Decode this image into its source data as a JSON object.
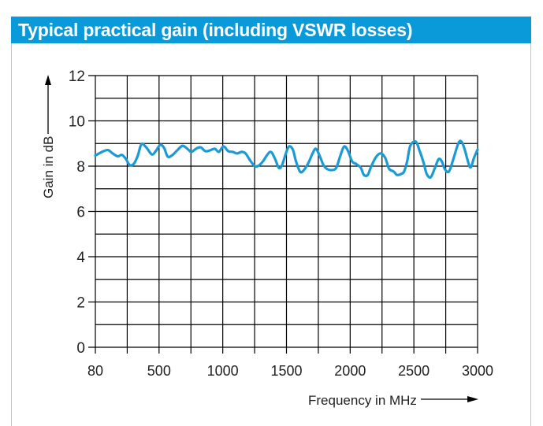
{
  "header": {
    "title": "Typical practical gain (including VSWR losses)"
  },
  "colors": {
    "header_bg": "#0a9ad9",
    "curve": "#1b9ad6",
    "grid": "#000000",
    "text": "#222222"
  },
  "chart_data": {
    "type": "line",
    "title": "Typical practical gain (including VSWR losses)",
    "xlabel": "Frequency in MHz",
    "ylabel": "Gain in dB",
    "x_ticks": [
      80,
      500,
      1000,
      1500,
      2000,
      2500,
      3000
    ],
    "x_tick_labels": [
      "80",
      "500",
      "1000",
      "1500",
      "2000",
      "2500",
      "3000"
    ],
    "x_grid": [
      80,
      290,
      500,
      750,
      1000,
      1250,
      1500,
      1750,
      2000,
      2250,
      2500,
      2750,
      3000
    ],
    "x_scale_note": "piecewise linear: 80-500 spans two grid columns, then 250 MHz per column",
    "y_ticks": [
      0,
      2,
      4,
      6,
      8,
      10,
      12
    ],
    "y_tick_labels": [
      "0",
      "2",
      "4",
      "6",
      "8",
      "10",
      "12"
    ],
    "y_grid": [
      0,
      1,
      2,
      3,
      4,
      5,
      6,
      7,
      8,
      9,
      10,
      11,
      12
    ],
    "xlim": [
      80,
      3000
    ],
    "ylim": [
      0,
      12
    ],
    "grid": true,
    "legend": null,
    "series": [
      {
        "name": "Gain",
        "x": [
          80,
          127,
          163,
          192,
          228,
          254,
          280,
          306,
          332,
          358,
          384,
          415,
          452,
          478,
          509,
          540,
          568,
          605,
          648,
          685,
          722,
          753,
          790,
          827,
          864,
          901,
          938,
          969,
          1006,
          1043,
          1080,
          1111,
          1148,
          1179,
          1216,
          1253,
          1284,
          1315,
          1371,
          1408,
          1439,
          1464,
          1495,
          1520,
          1550,
          1575,
          1606,
          1631,
          1668,
          1705,
          1730,
          1761,
          1792,
          1823,
          1860,
          1891,
          1922,
          1953,
          1984,
          2015,
          2046,
          2083,
          2108,
          2138,
          2163,
          2200,
          2237,
          2274,
          2305,
          2342,
          2367,
          2398,
          2423,
          2447,
          2472,
          2515,
          2546,
          2577,
          2601,
          2632,
          2663,
          2694,
          2719,
          2744,
          2775,
          2806,
          2849,
          2874,
          2899,
          2930,
          2948,
          2973,
          3000
        ],
        "y": [
          8.47,
          8.64,
          8.71,
          8.57,
          8.43,
          8.5,
          8.33,
          8.05,
          8.09,
          8.43,
          8.97,
          8.83,
          8.52,
          8.66,
          8.94,
          8.8,
          8.42,
          8.49,
          8.73,
          8.9,
          8.77,
          8.63,
          8.77,
          8.83,
          8.66,
          8.7,
          8.77,
          8.63,
          8.87,
          8.66,
          8.63,
          8.56,
          8.63,
          8.56,
          8.24,
          8.0,
          8.03,
          8.21,
          8.63,
          8.35,
          7.93,
          8.03,
          8.56,
          8.87,
          8.73,
          8.21,
          7.76,
          7.79,
          8.1,
          8.56,
          8.77,
          8.45,
          8.03,
          7.86,
          7.83,
          7.93,
          8.45,
          8.87,
          8.66,
          8.21,
          8.1,
          7.93,
          7.61,
          7.61,
          7.96,
          8.38,
          8.56,
          8.38,
          7.89,
          7.76,
          7.61,
          7.65,
          7.76,
          8.21,
          8.9,
          9.08,
          8.66,
          8.14,
          7.65,
          7.51,
          7.89,
          8.31,
          8.21,
          7.86,
          7.76,
          8.24,
          9.01,
          9.08,
          8.73,
          8.1,
          7.96,
          8.38,
          8.73
        ]
      }
    ]
  }
}
